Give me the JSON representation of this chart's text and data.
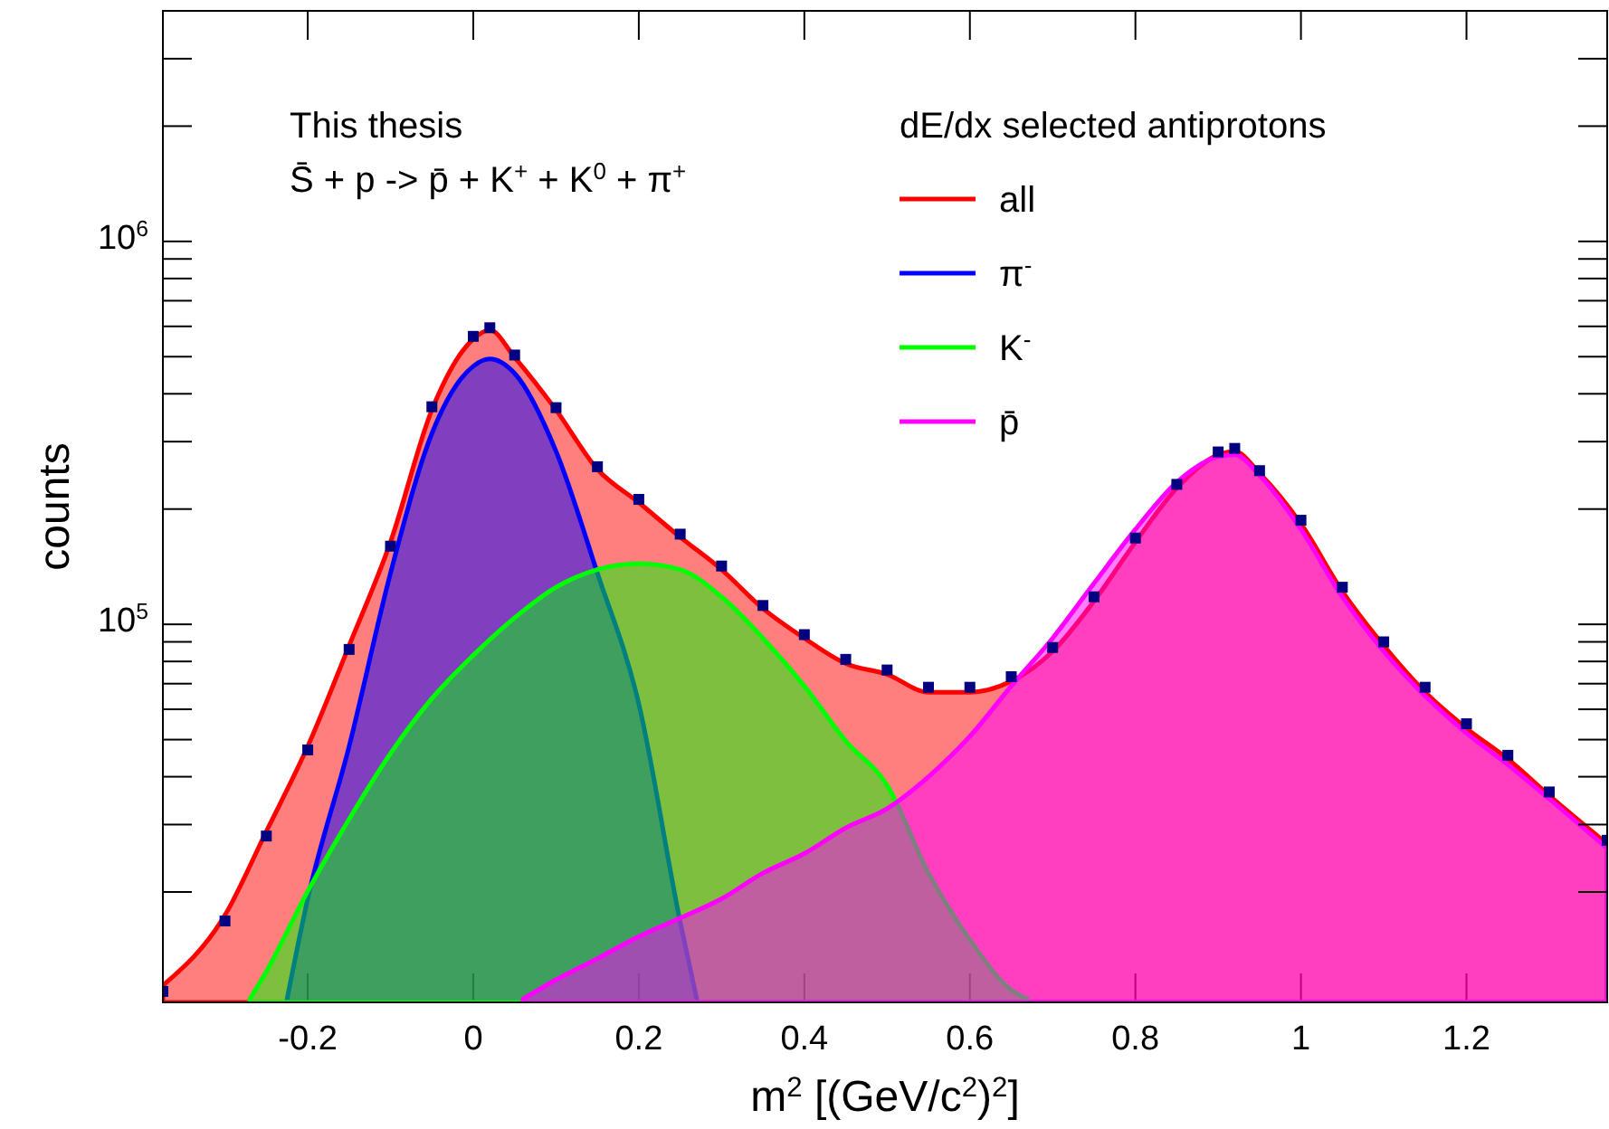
{
  "chart_data": {
    "type": "area",
    "xlabel": "m$^{2}$ [(GeV/c$^{2}$)$^{2}$]",
    "ylabel": "counts",
    "legend_title": "dE/dx selected antiprotons",
    "annotations": [
      "This thesis",
      "S̄ + p -> p̄ + K$^{+}$ + K$^{0}$ + π$^{+}$"
    ],
    "log": "y",
    "grid": false,
    "legend": "top right",
    "xlim": [
      -0.375,
      1.37
    ],
    "xticks": [
      -0.2,
      0,
      0.2,
      0.4,
      0.6,
      0.8,
      1,
      1.2
    ],
    "ylim": [
      10300,
      4000000
    ],
    "yticks": [
      {
        "value": 20000,
        "label": null
      },
      {
        "value": 30000,
        "label": null
      },
      {
        "value": 40000,
        "label": null
      },
      {
        "value": 50000,
        "label": null
      },
      {
        "value": 60000,
        "label": null
      },
      {
        "value": 70000,
        "label": null
      },
      {
        "value": 80000,
        "label": null
      },
      {
        "value": 90000,
        "label": null
      },
      {
        "value": 100000,
        "label": "10$^{5}$"
      },
      {
        "value": 200000,
        "label": null
      },
      {
        "value": 300000,
        "label": null
      },
      {
        "value": 400000,
        "label": null
      },
      {
        "value": 500000,
        "label": null
      },
      {
        "value": 600000,
        "label": null
      },
      {
        "value": 700000,
        "label": null
      },
      {
        "value": 800000,
        "label": null
      },
      {
        "value": 900000,
        "label": null
      },
      {
        "value": 1000000,
        "label": "10$^{6}$"
      },
      {
        "value": 2000000,
        "label": null
      },
      {
        "value": 3000000,
        "label": null
      },
      {
        "value": 4000000,
        "label": null
      }
    ],
    "series": [
      {
        "name": "all",
        "color": "#ff0000",
        "x": [
          -0.375,
          -0.3,
          -0.25,
          -0.2,
          -0.15,
          -0.1,
          -0.05,
          0,
          0.02,
          0.05,
          0.1,
          0.15,
          0.2,
          0.25,
          0.3,
          0.35,
          0.4,
          0.45,
          0.5,
          0.55,
          0.6,
          0.65,
          0.7,
          0.75,
          0.8,
          0.85,
          0.9,
          0.92,
          0.95,
          1.0,
          1.05,
          1.1,
          1.15,
          1.2,
          1.25,
          1.3,
          1.37
        ],
        "values": [
          11400,
          17400,
          28800,
          48000,
          88000,
          164000,
          363000,
          556000,
          587000,
          498000,
          363000,
          254000,
          208000,
          169000,
          139000,
          110000,
          92000,
          79000,
          74000,
          66500,
          66500,
          71000,
          85000,
          115000,
          164000,
          227000,
          277000,
          283000,
          248000,
          183000,
          122000,
          88000,
          66500,
          53500,
          44500,
          35700,
          26700
        ]
      },
      {
        "name": "π$^{-}$",
        "color": "#0000ff",
        "x": [
          -0.225,
          -0.2,
          -0.15,
          -0.1,
          -0.05,
          0,
          0.02,
          0.05,
          0.1,
          0.15,
          0.2,
          0.25,
          0.27
        ],
        "values": [
          10500,
          19200,
          48000,
          136000,
          315000,
          472000,
          493000,
          452000,
          283000,
          136000,
          62000,
          16700,
          10500
        ]
      },
      {
        "name": "K$^{-}$",
        "color": "#00ff00",
        "x": [
          -0.27,
          -0.25,
          -0.2,
          -0.15,
          -0.1,
          -0.05,
          0,
          0.05,
          0.1,
          0.15,
          0.2,
          0.25,
          0.3,
          0.35,
          0.4,
          0.45,
          0.5,
          0.55,
          0.6,
          0.65,
          0.67
        ],
        "values": [
          10500,
          12400,
          20100,
          31000,
          46000,
          64000,
          83000,
          104000,
          125000,
          139000,
          144000,
          139000,
          118000,
          92000,
          69000,
          49600,
          38000,
          22400,
          15000,
          11100,
          10500
        ]
      },
      {
        "name": "p̄",
        "color": "#ff00ff",
        "x": [
          0.06,
          0.1,
          0.15,
          0.2,
          0.25,
          0.3,
          0.35,
          0.4,
          0.45,
          0.5,
          0.55,
          0.6,
          0.65,
          0.7,
          0.75,
          0.8,
          0.85,
          0.9,
          0.92,
          0.95,
          1.0,
          1.05,
          1.1,
          1.15,
          1.2,
          1.25,
          1.3,
          1.37
        ],
        "values": [
          10500,
          11800,
          13400,
          15300,
          17100,
          19200,
          22400,
          25200,
          29400,
          33000,
          40000,
          51000,
          69000,
          92000,
          128000,
          177000,
          235000,
          274000,
          277000,
          245000,
          177000,
          118000,
          85000,
          65000,
          52000,
          43000,
          35000,
          26000
        ]
      },
      {
        "type": "scatter",
        "marker": "square",
        "color": "#000080",
        "x": [
          -0.375,
          -0.3,
          -0.25,
          -0.2,
          -0.15,
          -0.1,
          -0.05,
          0,
          0.02,
          0.05,
          0.1,
          0.15,
          0.2,
          0.25,
          0.3,
          0.35,
          0.4,
          0.45,
          0.5,
          0.55,
          0.6,
          0.65,
          0.7,
          0.75,
          0.8,
          0.85,
          0.9,
          0.92,
          0.95,
          1.0,
          1.05,
          1.1,
          1.15,
          1.2,
          1.25,
          1.3,
          1.37
        ],
        "values": [
          11000,
          16800,
          28000,
          47000,
          86000,
          160000,
          370000,
          565000,
          595000,
          505000,
          368000,
          258000,
          212000,
          172000,
          142000,
          112000,
          94000,
          81000,
          76000,
          68500,
          68500,
          73000,
          87000,
          118000,
          168000,
          232000,
          282000,
          288000,
          252000,
          187000,
          125000,
          90000,
          68500,
          55000,
          45500,
          36500,
          27300
        ]
      }
    ]
  }
}
